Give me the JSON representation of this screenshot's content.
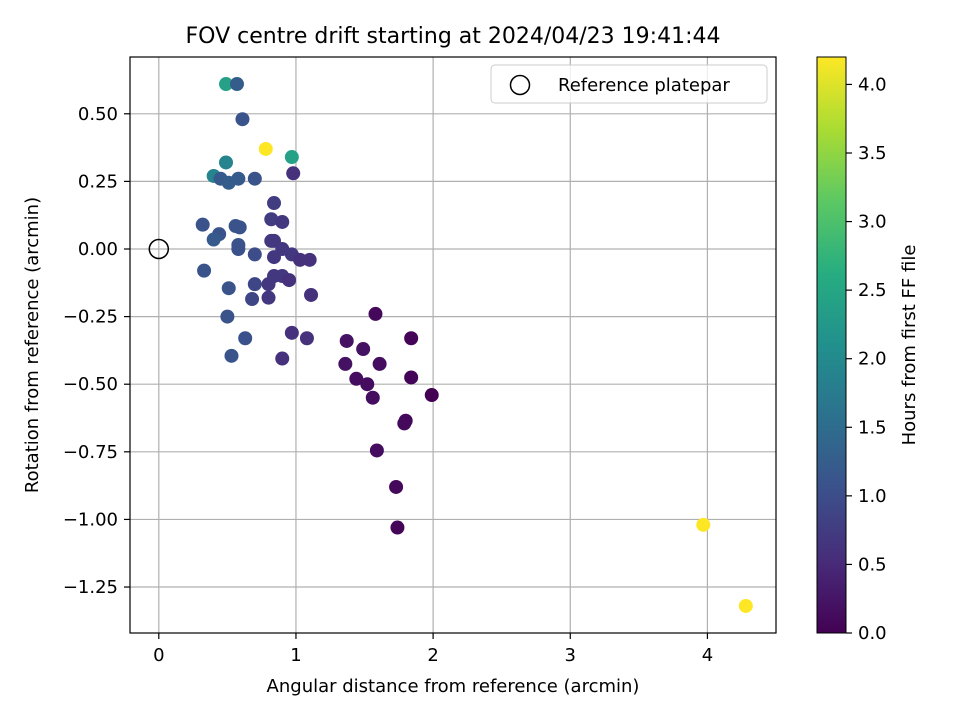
{
  "chart_data": {
    "type": "scatter",
    "title": "FOV centre drift starting at 2024/04/23 19:41:44",
    "xlabel": "Angular distance from reference (arcmin)",
    "ylabel": "Rotation from reference (arcmin)",
    "xlim": [
      -0.21,
      4.5
    ],
    "ylim": [
      -1.42,
      0.71
    ],
    "x_ticks": [
      0,
      1,
      2,
      3,
      4
    ],
    "x_tick_labels": [
      "0",
      "1",
      "2",
      "3",
      "4"
    ],
    "y_ticks": [
      0.5,
      0.25,
      0,
      -0.25,
      -0.5,
      -0.75,
      -1.0,
      -1.25
    ],
    "y_tick_labels": [
      "0.50",
      "0.25",
      "0.00",
      "−0.25",
      "−0.50",
      "−0.75",
      "−1.00",
      "−1.25"
    ],
    "grid": true,
    "legend": {
      "position": "top-right",
      "label": "Reference platepar"
    },
    "reference_point": {
      "x": 0,
      "y": 0
    },
    "colorbar": {
      "label": "Hours from first FF file",
      "colormap": "viridis",
      "range": [
        0,
        4.2
      ],
      "ticks": [
        0,
        0.5,
        1,
        1.5,
        2,
        2.5,
        3,
        3.5,
        4
      ],
      "tick_labels": [
        "0.0",
        "0.5",
        "1.0",
        "1.5",
        "2.0",
        "2.5",
        "3.0",
        "3.5",
        "4.0"
      ]
    },
    "points": [
      {
        "x": 0.49,
        "y": 0.61,
        "c": 2.4
      },
      {
        "x": 0.57,
        "y": 0.61,
        "c": 1.25
      },
      {
        "x": 0.61,
        "y": 0.48,
        "c": 1.1
      },
      {
        "x": 0.78,
        "y": 0.37,
        "c": 4.2
      },
      {
        "x": 0.97,
        "y": 0.34,
        "c": 2.4
      },
      {
        "x": 0.49,
        "y": 0.32,
        "c": 1.9
      },
      {
        "x": 0.98,
        "y": 0.28,
        "c": 0.6
      },
      {
        "x": 0.4,
        "y": 0.27,
        "c": 1.9
      },
      {
        "x": 0.45,
        "y": 0.26,
        "c": 1.2
      },
      {
        "x": 0.51,
        "y": 0.245,
        "c": 1.25
      },
      {
        "x": 0.58,
        "y": 0.26,
        "c": 1.2
      },
      {
        "x": 0.7,
        "y": 0.26,
        "c": 1.1
      },
      {
        "x": 0.84,
        "y": 0.17,
        "c": 0.75
      },
      {
        "x": 0.82,
        "y": 0.11,
        "c": 0.75
      },
      {
        "x": 0.9,
        "y": 0.1,
        "c": 0.7
      },
      {
        "x": 0.32,
        "y": 0.09,
        "c": 1.1
      },
      {
        "x": 0.56,
        "y": 0.085,
        "c": 1.1
      },
      {
        "x": 0.59,
        "y": 0.08,
        "c": 1.1
      },
      {
        "x": 0.44,
        "y": 0.055,
        "c": 1.1
      },
      {
        "x": 0.4,
        "y": 0.035,
        "c": 1.2
      },
      {
        "x": 0.82,
        "y": 0.03,
        "c": 0.7
      },
      {
        "x": 0.84,
        "y": 0.03,
        "c": 0.7
      },
      {
        "x": 0.58,
        "y": 0.015,
        "c": 1.1
      },
      {
        "x": 0.58,
        "y": 0.0,
        "c": 1.05
      },
      {
        "x": 0.9,
        "y": 0.0,
        "c": 0.7
      },
      {
        "x": 0.97,
        "y": -0.02,
        "c": 0.7
      },
      {
        "x": 0.7,
        "y": -0.02,
        "c": 1.0
      },
      {
        "x": 0.84,
        "y": -0.03,
        "c": 0.7
      },
      {
        "x": 1.03,
        "y": -0.04,
        "c": 0.6
      },
      {
        "x": 1.1,
        "y": -0.04,
        "c": 0.6
      },
      {
        "x": 0.33,
        "y": -0.08,
        "c": 1.1
      },
      {
        "x": 0.84,
        "y": -0.1,
        "c": 0.7
      },
      {
        "x": 0.9,
        "y": -0.1,
        "c": 0.7
      },
      {
        "x": 0.95,
        "y": -0.115,
        "c": 0.6
      },
      {
        "x": 0.7,
        "y": -0.13,
        "c": 0.9
      },
      {
        "x": 0.8,
        "y": -0.13,
        "c": 0.7
      },
      {
        "x": 0.51,
        "y": -0.145,
        "c": 1.1
      },
      {
        "x": 1.11,
        "y": -0.17,
        "c": 0.6
      },
      {
        "x": 0.68,
        "y": -0.185,
        "c": 0.9
      },
      {
        "x": 0.8,
        "y": -0.18,
        "c": 0.7
      },
      {
        "x": 0.5,
        "y": -0.25,
        "c": 1.1
      },
      {
        "x": 0.97,
        "y": -0.31,
        "c": 0.6
      },
      {
        "x": 0.63,
        "y": -0.33,
        "c": 1.05
      },
      {
        "x": 1.08,
        "y": -0.33,
        "c": 0.6
      },
      {
        "x": 0.53,
        "y": -0.395,
        "c": 1.1
      },
      {
        "x": 0.9,
        "y": -0.405,
        "c": 0.6
      },
      {
        "x": 1.58,
        "y": -0.24,
        "c": 0.1
      },
      {
        "x": 1.84,
        "y": -0.33,
        "c": 0.05
      },
      {
        "x": 1.37,
        "y": -0.34,
        "c": 0.2
      },
      {
        "x": 1.49,
        "y": -0.37,
        "c": 0.2
      },
      {
        "x": 1.36,
        "y": -0.425,
        "c": 0.2
      },
      {
        "x": 1.61,
        "y": -0.425,
        "c": 0.15
      },
      {
        "x": 1.44,
        "y": -0.48,
        "c": 0.15
      },
      {
        "x": 1.84,
        "y": -0.475,
        "c": 0.05
      },
      {
        "x": 1.52,
        "y": -0.5,
        "c": 0.15
      },
      {
        "x": 1.56,
        "y": -0.55,
        "c": 0.15
      },
      {
        "x": 1.99,
        "y": -0.54,
        "c": 0.0
      },
      {
        "x": 1.8,
        "y": -0.635,
        "c": 0.1
      },
      {
        "x": 1.79,
        "y": -0.645,
        "c": 0.1
      },
      {
        "x": 1.59,
        "y": -0.745,
        "c": 0.15
      },
      {
        "x": 1.73,
        "y": -0.88,
        "c": 0.1
      },
      {
        "x": 1.74,
        "y": -1.03,
        "c": 0.05
      },
      {
        "x": 3.97,
        "y": -1.02,
        "c": 4.2
      },
      {
        "x": 4.28,
        "y": -1.32,
        "c": 4.2
      }
    ]
  }
}
